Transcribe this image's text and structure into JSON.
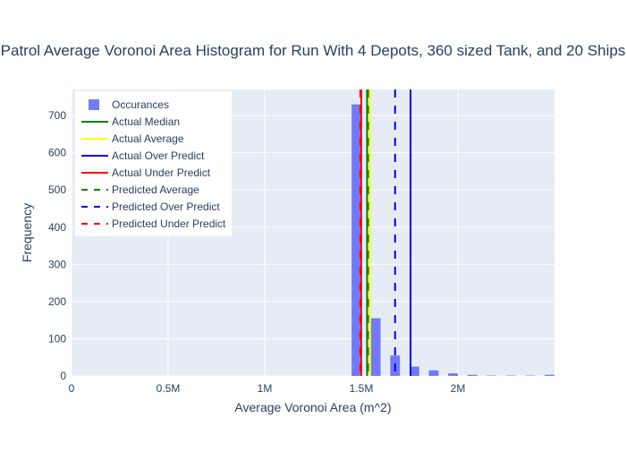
{
  "chart_data": {
    "type": "bar",
    "title": "Patrol Average Voronoi Area Histogram for Run With 4 Depots, 360 sized Tank, and 20 Ships",
    "xlabel": "Average Voronoi Area (m^2)",
    "ylabel": "Frequency",
    "xlim": [
      0,
      2500000
    ],
    "ylim": [
      0,
      770
    ],
    "x_ticks": [
      {
        "value": 0,
        "label": "0"
      },
      {
        "value": 500000,
        "label": "0.5M"
      },
      {
        "value": 1000000,
        "label": "1M"
      },
      {
        "value": 1500000,
        "label": "1.5M"
      },
      {
        "value": 2000000,
        "label": "2M"
      }
    ],
    "y_ticks": [
      {
        "value": 0,
        "label": "0"
      },
      {
        "value": 100,
        "label": "100"
      },
      {
        "value": 200,
        "label": "200"
      },
      {
        "value": 300,
        "label": "300"
      },
      {
        "value": 400,
        "label": "400"
      },
      {
        "value": 500,
        "label": "500"
      },
      {
        "value": 600,
        "label": "600"
      },
      {
        "value": 700,
        "label": "700"
      }
    ],
    "grid": true,
    "legend_position": "top-left",
    "background_color": "#e5ecf6",
    "histogram": {
      "name": "Occurances",
      "color": "#636efa",
      "opacity": 0.9,
      "bins": [
        {
          "x0": 1450000,
          "x1": 1500000,
          "count": 730
        },
        {
          "x0": 1550000,
          "x1": 1600000,
          "count": 155
        },
        {
          "x0": 1650000,
          "x1": 1700000,
          "count": 55
        },
        {
          "x0": 1750000,
          "x1": 1800000,
          "count": 25
        },
        {
          "x0": 1850000,
          "x1": 1900000,
          "count": 15
        },
        {
          "x0": 1950000,
          "x1": 2000000,
          "count": 7
        },
        {
          "x0": 2050000,
          "x1": 2100000,
          "count": 3
        },
        {
          "x0": 2150000,
          "x1": 2200000,
          "count": 1
        },
        {
          "x0": 2250000,
          "x1": 2300000,
          "count": 1
        },
        {
          "x0": 2350000,
          "x1": 2400000,
          "count": 1
        },
        {
          "x0": 2450000,
          "x1": 2500000,
          "count": 3
        }
      ]
    },
    "vertical_lines": [
      {
        "name": "Actual Median",
        "x": 1530000,
        "color": "#008000",
        "dash": "solid"
      },
      {
        "name": "Actual Average",
        "x": 1545000,
        "color": "#ffff00",
        "dash": "solid"
      },
      {
        "name": "Actual Over Predict",
        "x": 1755000,
        "color": "#0000ff",
        "dash": "solid"
      },
      {
        "name": "Actual Under Predict",
        "x": 1500000,
        "color": "#ff0000",
        "dash": "solid"
      },
      {
        "name": "Predicted Average",
        "x": 1535000,
        "color": "#008000",
        "dash": "dash"
      },
      {
        "name": "Predicted Over Predict",
        "x": 1675000,
        "color": "#0000ff",
        "dash": "dash"
      },
      {
        "name": "Predicted Under Predict",
        "x": 1495000,
        "color": "#ff0000",
        "dash": "dash"
      }
    ]
  }
}
